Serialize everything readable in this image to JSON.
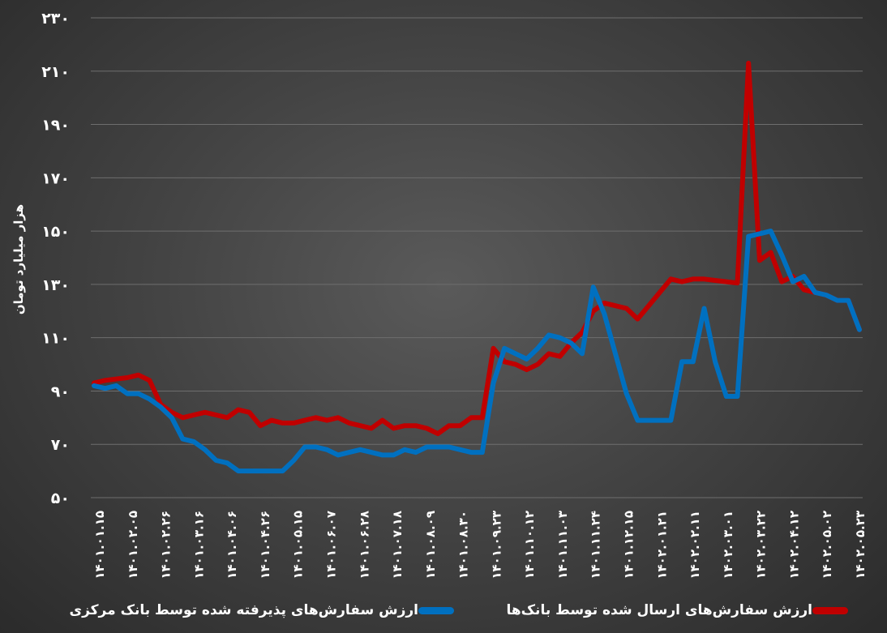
{
  "chart_data": {
    "type": "line",
    "title": "",
    "ylabel": "هزار میلیارد تومان",
    "xlabel": "",
    "ylim": [
      50,
      230
    ],
    "yticks": [
      50,
      70,
      90,
      110,
      130,
      150,
      170,
      190,
      210,
      230
    ],
    "ytick_labels": [
      "۵۰",
      "۷۰",
      "۹۰",
      "۱۱۰",
      "۱۳۰",
      "۱۵۰",
      "۱۷۰",
      "۱۹۰",
      "۲۱۰",
      "۲۳۰"
    ],
    "grid": true,
    "legend_position": "bottom",
    "x_tick_labels": [
      "۱۴۰۱.۰۱.۱۵",
      "۱۴۰۱.۰۲.۰۵",
      "۱۴۰۱.۰۲.۲۶",
      "۱۴۰۱.۰۳.۱۶",
      "۱۴۰۱.۰۴.۰۶",
      "۱۴۰۱.۰۴.۲۶",
      "۱۴۰۱.۰۵.۱۵",
      "۱۴۰۱.۰۶.۰۷",
      "۱۴۰۱.۰۶.۲۸",
      "۱۴۰۱.۰۷.۱۸",
      "۱۴۰۱.۰۸.۰۹",
      "۱۴۰۱.۰۸.۳۰",
      "۱۴۰۱.۰۹.۲۳",
      "۱۴۰۱.۱۰.۱۲",
      "۱۴۰۱.۱۱.۰۳",
      "۱۴۰۱.۱۱.۲۴",
      "۱۴۰۱.۱۲.۱۵",
      "۱۴۰۲.۰۱.۲۱",
      "۱۴۰۲.۰۲.۱۱",
      "۱۴۰۲.۰۳.۰۱",
      "۱۴۰۲.۰۳.۲۲",
      "۱۴۰۲.۰۴.۱۲",
      "۱۴۰۲.۰۵.۰۲",
      "۱۴۰۲.۰۵.۲۳"
    ],
    "series": [
      {
        "name": "ارزش سفارش‌های ارسال شده توسط بانک‌ها",
        "color": "#c00000",
        "values": [
          93,
          94,
          94.5,
          95,
          96,
          94,
          85,
          82,
          80,
          81,
          82,
          81,
          80,
          83,
          82,
          77,
          79,
          78,
          78,
          79,
          80,
          79,
          80,
          78,
          77,
          76,
          79,
          76,
          77,
          77,
          76,
          74,
          77,
          77,
          80,
          80,
          106,
          101,
          100,
          98,
          100,
          104,
          103,
          108,
          112,
          120,
          123,
          122,
          121,
          117,
          122,
          127,
          132,
          131,
          132,
          132,
          131.5,
          131,
          130.5,
          213,
          139,
          142,
          131,
          133,
          128,
          127,
          126,
          124,
          124,
          113
        ]
      },
      {
        "name": "ارزش سفارش‌های پذیرفته شده توسط بانک مرکزی",
        "color": "#0070c0",
        "values": [
          92,
          91,
          92,
          89,
          89,
          87,
          84,
          80,
          72,
          71,
          68,
          64,
          63,
          60,
          60,
          60,
          60,
          60,
          64,
          69,
          69,
          68,
          66,
          67,
          68,
          67,
          66,
          66,
          68,
          67,
          69,
          69,
          69,
          68,
          67,
          67,
          93,
          106,
          104,
          102,
          106,
          111,
          110,
          108,
          104,
          129,
          119,
          104,
          89,
          79,
          79,
          79,
          79,
          101,
          101,
          121,
          101,
          88,
          88,
          148,
          149,
          150,
          141,
          131,
          133,
          127,
          126,
          124,
          124,
          113
        ]
      }
    ]
  }
}
